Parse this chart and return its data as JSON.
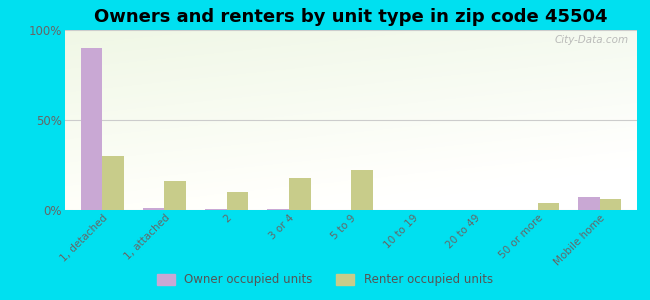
{
  "title": "Owners and renters by unit type in zip code 45504",
  "categories": [
    "1, detached",
    "1, attached",
    "2",
    "3 or 4",
    "5 to 9",
    "10 to 19",
    "20 to 49",
    "50 or more",
    "Mobile home"
  ],
  "owner_values": [
    90,
    1,
    0.5,
    0.5,
    0,
    0,
    0,
    0,
    7
  ],
  "renter_values": [
    30,
    16,
    10,
    18,
    22,
    0,
    0,
    4,
    6
  ],
  "owner_color": "#c9a8d4",
  "renter_color": "#c8cc8a",
  "bg_color_top": "#f0f8e8",
  "bg_color_bottom": "#fafff5",
  "outer_bg": "#00e0f0",
  "ylabel_ticks": [
    "0%",
    "50%",
    "100%"
  ],
  "ytick_vals": [
    0,
    50,
    100
  ],
  "ylim": [
    0,
    100
  ],
  "watermark": "City-Data.com",
  "legend_owner": "Owner occupied units",
  "legend_renter": "Renter occupied units",
  "title_fontsize": 13,
  "bar_width": 0.35
}
